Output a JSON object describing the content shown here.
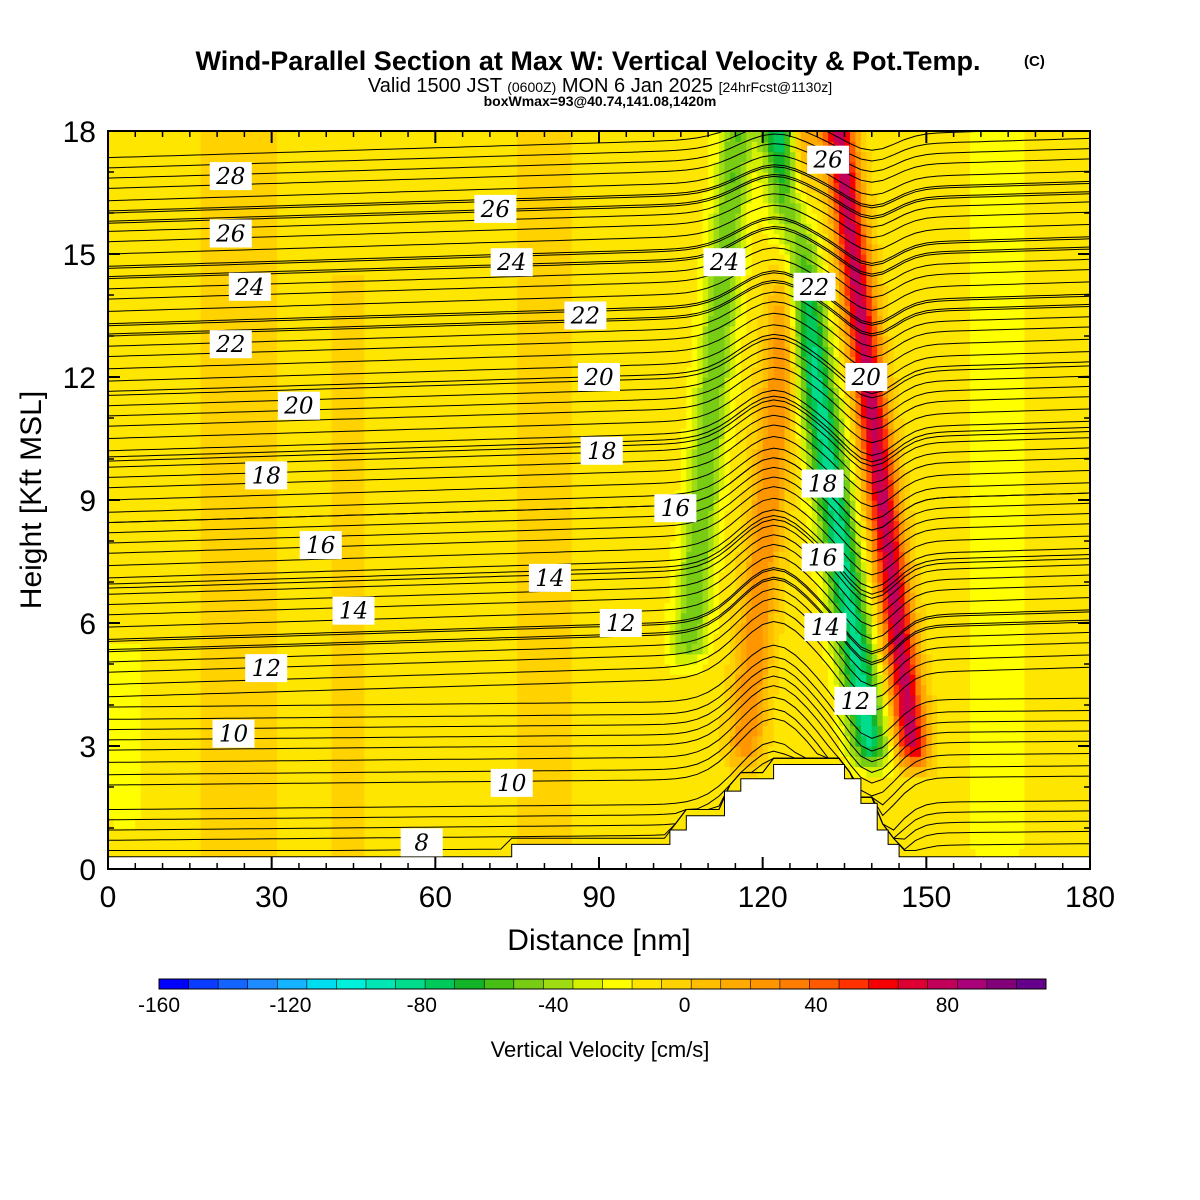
{
  "title": {
    "main": "Wind-Parallel Section at Max W: Vertical Velocity & Pot.Temp.",
    "copyright": "(C)",
    "valid_prefix": "Valid 1500 JST",
    "valid_utc": "(0600Z)",
    "valid_date": "MON 6 Jan 2025",
    "forecast": "[24hrFcst@1130z]",
    "box": "boxWmax=93@40.74,141.08,1420m"
  },
  "chart_data": {
    "type": "heatmap",
    "xlabel": "Distance [nm]",
    "ylabel": "Height [Kft MSL]",
    "xlim": [
      0,
      180
    ],
    "ylim": [
      0,
      18
    ],
    "xticks": [
      "0",
      "30",
      "60",
      "90",
      "120",
      "150",
      "180"
    ],
    "yticks": [
      "0",
      "3",
      "6",
      "9",
      "12",
      "15",
      "18"
    ],
    "field": "Vertical Velocity [cm/s]",
    "background_w": 5,
    "w_features": [
      {
        "x": 109,
        "width": 3.2,
        "amp": -45,
        "y_from": 5.5,
        "y_to": 18,
        "tilt": 0.7
      },
      {
        "x": 121,
        "width": 3.2,
        "amp": 45,
        "y_from": 3,
        "y_to": 18,
        "tilt": 0.7
      },
      {
        "x": 133,
        "width": 3.5,
        "amp": -80,
        "y_from": 3,
        "y_to": 18,
        "tilt": -1.1
      },
      {
        "x": 142,
        "width": 3.0,
        "amp": 100,
        "y_from": 3,
        "y_to": 18,
        "tilt": -0.9
      },
      {
        "x": 24,
        "width": 8,
        "amp": 12,
        "y_from": 0.5,
        "y_to": 18,
        "tilt": 0
      },
      {
        "x": 44,
        "width": 4,
        "amp": 10,
        "y_from": 0.5,
        "y_to": 14,
        "tilt": 0
      },
      {
        "x": 80,
        "width": 6,
        "amp": 10,
        "y_from": 0.5,
        "y_to": 18,
        "tilt": 0
      },
      {
        "x": 3,
        "width": 3,
        "amp": -15,
        "y_from": 1.5,
        "y_to": 5,
        "tilt": 0
      },
      {
        "x": 163,
        "width": 6,
        "amp": -10,
        "y_from": 0.5,
        "y_to": 18,
        "tilt": 0
      }
    ],
    "terrain": [
      {
        "x": 0,
        "h": 0.3
      },
      {
        "x": 74,
        "h": 0.3
      },
      {
        "x": 74,
        "h": 0.6
      },
      {
        "x": 103,
        "h": 0.6
      },
      {
        "x": 103,
        "h": 0.95
      },
      {
        "x": 106,
        "h": 0.95
      },
      {
        "x": 106,
        "h": 1.3
      },
      {
        "x": 113,
        "h": 1.3
      },
      {
        "x": 113,
        "h": 1.9
      },
      {
        "x": 116,
        "h": 1.9
      },
      {
        "x": 116,
        "h": 2.2
      },
      {
        "x": 122,
        "h": 2.2
      },
      {
        "x": 122,
        "h": 2.55
      },
      {
        "x": 135,
        "h": 2.55
      },
      {
        "x": 135,
        "h": 2.2
      },
      {
        "x": 138,
        "h": 2.2
      },
      {
        "x": 138,
        "h": 1.6
      },
      {
        "x": 141,
        "h": 1.6
      },
      {
        "x": 141,
        "h": 0.95
      },
      {
        "x": 143,
        "h": 0.95
      },
      {
        "x": 143,
        "h": 0.6
      },
      {
        "x": 145,
        "h": 0.6
      },
      {
        "x": 145,
        "h": 0.3
      },
      {
        "x": 180,
        "h": 0.3
      }
    ],
    "theta_contours": [
      {
        "theta": 8,
        "y0": 0.4,
        "label_at": [
          57.5,
          0.65
        ]
      },
      {
        "theta": 10,
        "y0": 2.6,
        "label_at": [
          23,
          3.3
        ]
      },
      {
        "theta": 10,
        "y0": 2.6,
        "label_at": [
          74,
          2.1
        ]
      },
      {
        "theta": 12,
        "y0": 4.5,
        "label_at": [
          29,
          4.9
        ]
      },
      {
        "theta": 12,
        "y0": 4.5,
        "label_at": [
          94,
          6.0
        ]
      },
      {
        "theta": 12,
        "y0": 4.5,
        "label_at": [
          137,
          4.1
        ]
      },
      {
        "theta": 14,
        "y0": 5.9,
        "label_at": [
          45,
          6.3
        ]
      },
      {
        "theta": 14,
        "y0": 5.9,
        "label_at": [
          81,
          7.1
        ]
      },
      {
        "theta": 14,
        "y0": 5.9,
        "label_at": [
          131.5,
          5.9
        ]
      },
      {
        "theta": 16,
        "y0": 7.4,
        "label_at": [
          39,
          7.9
        ]
      },
      {
        "theta": 16,
        "y0": 7.4,
        "label_at": [
          104,
          8.8
        ]
      },
      {
        "theta": 16,
        "y0": 7.4,
        "label_at": [
          131,
          7.6
        ]
      },
      {
        "theta": 18,
        "y0": 9.0,
        "label_at": [
          29,
          9.6
        ]
      },
      {
        "theta": 18,
        "y0": 9.0,
        "label_at": [
          90.5,
          10.2
        ]
      },
      {
        "theta": 18,
        "y0": 9.0,
        "label_at": [
          131,
          9.4
        ]
      },
      {
        "theta": 20,
        "y0": 10.5,
        "label_at": [
          35,
          11.3
        ]
      },
      {
        "theta": 20,
        "y0": 10.5,
        "label_at": [
          90,
          12.0
        ]
      },
      {
        "theta": 20,
        "y0": 10.5,
        "label_at": [
          139,
          12.0
        ]
      },
      {
        "theta": 22,
        "y0": 12.2,
        "label_at": [
          22.5,
          12.8
        ]
      },
      {
        "theta": 22,
        "y0": 12.2,
        "label_at": [
          87.5,
          13.5
        ]
      },
      {
        "theta": 22,
        "y0": 12.2,
        "label_at": [
          129.5,
          14.2
        ]
      },
      {
        "theta": 24,
        "y0": 13.6,
        "label_at": [
          26,
          14.2
        ]
      },
      {
        "theta": 24,
        "y0": 13.6,
        "label_at": [
          74,
          14.8
        ]
      },
      {
        "theta": 24,
        "y0": 13.6,
        "label_at": [
          113,
          14.8
        ]
      },
      {
        "theta": 26,
        "y0": 15.0,
        "label_at": [
          22.5,
          15.5
        ]
      },
      {
        "theta": 26,
        "y0": 15.0,
        "label_at": [
          71,
          16.1
        ]
      },
      {
        "theta": 26,
        "y0": 15.0,
        "label_at": [
          132,
          17.3
        ]
      },
      {
        "theta": 28,
        "y0": 16.3,
        "label_at": [
          22.5,
          16.9
        ]
      }
    ],
    "theta_line_offsets": [
      -0.55,
      -0.3,
      0,
      0.3,
      0.55,
      0.8,
      1.05
    ],
    "colorbar": {
      "label": "Vertical Velocity [cm/s]",
      "ticks": [
        "-160",
        "-120",
        "-80",
        "-40",
        "0",
        "40",
        "80"
      ],
      "tick_values": [
        -160,
        -120,
        -80,
        -40,
        0,
        40,
        80
      ],
      "vmin": -160,
      "vmax": 110,
      "step": 10,
      "colors": [
        "#0000ff",
        "#0a3cff",
        "#1464ff",
        "#1e8cff",
        "#14b4ff",
        "#00dcf0",
        "#00f0dc",
        "#00e6b4",
        "#00dc8c",
        "#00c85a",
        "#14b428",
        "#46be14",
        "#78cd14",
        "#a0dc14",
        "#d2f000",
        "#ffff00",
        "#ffe600",
        "#ffd200",
        "#ffbe00",
        "#ffaa00",
        "#ff9600",
        "#ff7d00",
        "#ff5a00",
        "#ff3200",
        "#f50000",
        "#dc0032",
        "#c3005a",
        "#aa0078",
        "#820078",
        "#64008c"
      ]
    }
  }
}
